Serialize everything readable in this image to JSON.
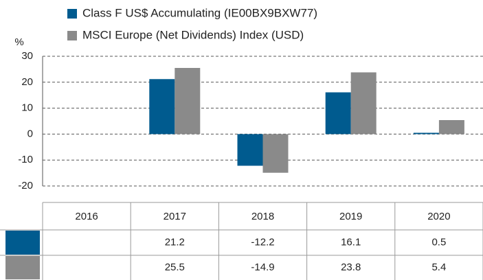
{
  "chart_data": {
    "type": "bar",
    "y_unit": "%",
    "categories": [
      "2016",
      "2017",
      "2018",
      "2019",
      "2020"
    ],
    "series": [
      {
        "name": "Class F US$ Accumulating (IE00BX9BXW77)",
        "color": "#005b8f",
        "values": [
          null,
          21.2,
          -12.2,
          16.1,
          0.5
        ]
      },
      {
        "name": "MSCI Europe (Net Dividends) Index (USD)",
        "color": "#8a8a8a",
        "values": [
          null,
          25.5,
          -14.9,
          23.8,
          5.4
        ]
      }
    ],
    "ylim": [
      -20,
      30
    ],
    "yticks": [
      -20,
      -10,
      0,
      10,
      20,
      30
    ],
    "grid": true
  }
}
